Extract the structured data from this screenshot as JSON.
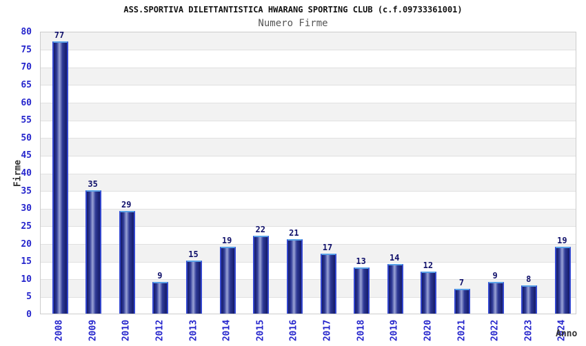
{
  "header": {
    "title": "ASS.SPORTIVA DILETTANTISTICA HWARANG SPORTING CLUB (c.f.09733361001)",
    "subtitle": "Numero Firme"
  },
  "chart_data": {
    "type": "bar",
    "title": "ASS.SPORTIVA DILETTANTISTICA HWARANG SPORTING CLUB (c.f.09733361001)",
    "subtitle": "Numero Firme",
    "xlabel": "Anno",
    "ylabel": "Firme",
    "categories": [
      "2008",
      "2009",
      "2010",
      "2012",
      "2013",
      "2014",
      "2015",
      "2016",
      "2017",
      "2018",
      "2019",
      "2020",
      "2021",
      "2022",
      "2023",
      "2024"
    ],
    "values": [
      77,
      35,
      29,
      9,
      15,
      19,
      22,
      21,
      17,
      13,
      14,
      12,
      7,
      9,
      8,
      19
    ],
    "ylim": [
      0,
      80
    ],
    "yticks": [
      0,
      5,
      10,
      15,
      20,
      25,
      30,
      35,
      40,
      45,
      50,
      55,
      60,
      65,
      70,
      75,
      80
    ],
    "grid": "horizontal gridlines every 5 units with alternating gray/white bands",
    "legend": "none",
    "colors": {
      "title": "#111111",
      "subtitle": "#555555",
      "axis_tick_blue": "#2525cc",
      "value_label_navy": "#10106a",
      "axis_title": "#333333",
      "bar_dark": "#141a66",
      "bar_mid": "#2e3a96",
      "bar_light": "#9aa3d6",
      "bar_border_top": "#5aa2e8",
      "bar_border_side": "#3448cf",
      "stripe_gray": "#f2f2f2",
      "grid_line": "#e0e0e0",
      "plot_border": "#cccccc",
      "background": "#ffffff"
    }
  }
}
